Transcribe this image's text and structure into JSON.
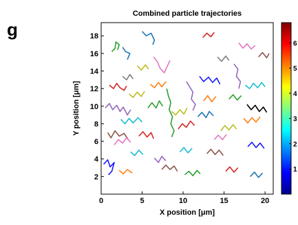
{
  "panel_label": "g",
  "chart_data": {
    "type": "line",
    "title": "Combined particle trajectories",
    "xlabel": "X position [μm]",
    "ylabel": "Y position [μm]",
    "xlim": [
      0,
      21
    ],
    "ylim": [
      0,
      19.5
    ],
    "x_ticks": [
      0,
      5,
      10,
      15,
      20
    ],
    "y_ticks": [
      2,
      4,
      6,
      8,
      10,
      12,
      14,
      16,
      18
    ],
    "grid": false,
    "colorbar": {
      "range": [
        0,
        6.8
      ],
      "ticks": [
        1,
        2,
        3,
        4,
        5,
        6
      ],
      "colormap": "jet",
      "placement": "right"
    },
    "series": [
      {
        "color": "#d62728",
        "points": [
          [
            1.0,
            12.4
          ],
          [
            1.5,
            12.0
          ],
          [
            1.9,
            12.6
          ],
          [
            2.3,
            12.1
          ],
          [
            2.8,
            11.8
          ],
          [
            3.1,
            12.3
          ]
        ]
      },
      {
        "color": "#2ca02c",
        "points": [
          [
            1.3,
            16.2
          ],
          [
            1.7,
            16.6
          ],
          [
            1.8,
            17.3
          ],
          [
            2.2,
            17.0
          ],
          [
            2.0,
            16.4
          ]
        ]
      },
      {
        "color": "#1f77b4",
        "points": [
          [
            2.6,
            16.7
          ],
          [
            3.0,
            16.2
          ],
          [
            3.5,
            16.0
          ],
          [
            3.2,
            15.3
          ]
        ]
      },
      {
        "color": "#9467bd",
        "points": [
          [
            0.5,
            9.8
          ],
          [
            1.0,
            10.3
          ],
          [
            1.4,
            9.6
          ],
          [
            1.9,
            10.1
          ],
          [
            2.3,
            9.4
          ],
          [
            2.7,
            9.9
          ],
          [
            3.2,
            9.0
          ],
          [
            3.6,
            9.6
          ]
        ]
      },
      {
        "color": "#17becf",
        "points": [
          [
            2.4,
            8.5
          ],
          [
            2.9,
            8.0
          ],
          [
            3.4,
            8.6
          ],
          [
            3.9,
            8.1
          ],
          [
            4.5,
            8.7
          ],
          [
            5.0,
            8.2
          ]
        ]
      },
      {
        "color": "#8c564b",
        "points": [
          [
            0.8,
            7.0
          ],
          [
            1.2,
            6.4
          ],
          [
            1.7,
            7.2
          ],
          [
            2.2,
            6.6
          ],
          [
            2.8,
            6.9
          ],
          [
            3.3,
            6.2
          ]
        ]
      },
      {
        "color": "#e377c2",
        "points": [
          [
            1.6,
            5.6
          ],
          [
            2.1,
            6.2
          ],
          [
            2.6,
            5.8
          ],
          [
            3.1,
            6.4
          ],
          [
            3.6,
            5.9
          ]
        ]
      },
      {
        "color": "#1a1aff",
        "points": [
          [
            0.3,
            3.4
          ],
          [
            0.8,
            3.9
          ],
          [
            1.1,
            3.1
          ],
          [
            1.6,
            3.6
          ],
          [
            1.3,
            2.6
          ],
          [
            0.9,
            2.2
          ]
        ]
      },
      {
        "color": "#ff7f0e",
        "points": [
          [
            2.2,
            2.7
          ],
          [
            2.7,
            2.3
          ],
          [
            3.2,
            2.8
          ],
          [
            3.8,
            2.4
          ]
        ]
      },
      {
        "color": "#7f7f7f",
        "points": [
          [
            2.6,
            13.4
          ],
          [
            3.1,
            13.0
          ],
          [
            3.5,
            13.6
          ],
          [
            3.9,
            13.1
          ]
        ]
      },
      {
        "color": "#bcbd22",
        "points": [
          [
            3.4,
            11.4
          ],
          [
            3.9,
            11.0
          ],
          [
            4.4,
            11.6
          ],
          [
            4.9,
            11.1
          ],
          [
            5.3,
            11.7
          ]
        ]
      },
      {
        "color": "#1f77b4",
        "points": [
          [
            5.0,
            18.5
          ],
          [
            5.5,
            18.0
          ],
          [
            6.1,
            18.3
          ],
          [
            6.5,
            17.5
          ],
          [
            6.3,
            17.0
          ]
        ]
      },
      {
        "color": "#d62728",
        "points": [
          [
            4.6,
            6.6
          ],
          [
            5.1,
            7.1
          ],
          [
            5.6,
            6.5
          ],
          [
            6.1,
            7.0
          ],
          [
            6.4,
            6.3
          ]
        ]
      },
      {
        "color": "#2ca02c",
        "points": [
          [
            5.7,
            9.8
          ],
          [
            6.2,
            10.4
          ],
          [
            6.7,
            9.8
          ],
          [
            7.1,
            10.6
          ],
          [
            7.5,
            10.0
          ]
        ]
      },
      {
        "color": "#ff7f0e",
        "points": [
          [
            6.0,
            12.5
          ],
          [
            6.5,
            12.1
          ],
          [
            7.0,
            12.7
          ],
          [
            7.4,
            12.2
          ],
          [
            7.9,
            12.8
          ]
        ]
      },
      {
        "color": "#9467bd",
        "points": [
          [
            6.5,
            4.1
          ],
          [
            7.0,
            3.6
          ],
          [
            7.4,
            4.3
          ],
          [
            7.9,
            3.8
          ]
        ]
      },
      {
        "color": "#8c564b",
        "points": [
          [
            7.4,
            2.8
          ],
          [
            7.9,
            3.3
          ],
          [
            8.4,
            2.8
          ],
          [
            8.9,
            3.2
          ],
          [
            9.3,
            2.6
          ]
        ]
      },
      {
        "color": "#2ca02c",
        "points": [
          [
            8.0,
            12.0
          ],
          [
            8.2,
            11.2
          ],
          [
            8.5,
            10.4
          ],
          [
            8.3,
            9.6
          ],
          [
            8.7,
            8.8
          ],
          [
            8.5,
            8.0
          ],
          [
            8.9,
            7.2
          ],
          [
            8.6,
            6.5
          ]
        ]
      },
      {
        "color": "#e377c2",
        "points": [
          [
            6.4,
            15.6
          ],
          [
            6.9,
            15.0
          ],
          [
            7.2,
            14.3
          ],
          [
            7.7,
            13.8
          ],
          [
            8.1,
            14.6
          ],
          [
            8.4,
            15.2
          ]
        ]
      },
      {
        "color": "#bcbd22",
        "points": [
          [
            8.6,
            9.4
          ],
          [
            9.1,
            9.0
          ],
          [
            9.6,
            9.6
          ],
          [
            10.1,
            9.1
          ],
          [
            10.5,
            9.8
          ]
        ]
      },
      {
        "color": "#d62728",
        "points": [
          [
            9.4,
            7.4
          ],
          [
            9.9,
            8.0
          ],
          [
            10.4,
            7.6
          ],
          [
            10.9,
            8.3
          ],
          [
            11.4,
            7.8
          ]
        ]
      },
      {
        "color": "#9467bd",
        "points": [
          [
            10.4,
            12.8
          ],
          [
            10.8,
            12.2
          ],
          [
            11.2,
            11.6
          ],
          [
            11.0,
            10.8
          ],
          [
            11.5,
            10.2
          ],
          [
            11.2,
            9.5
          ]
        ]
      },
      {
        "color": "#17becf",
        "points": [
          [
            9.6,
            4.8
          ],
          [
            10.1,
            5.3
          ],
          [
            10.6,
            4.7
          ],
          [
            11.1,
            5.2
          ]
        ]
      },
      {
        "color": "#2ca02c",
        "points": [
          [
            10.2,
            2.2
          ],
          [
            10.7,
            2.6
          ],
          [
            11.2,
            2.1
          ],
          [
            11.7,
            2.7
          ],
          [
            12.1,
            2.3
          ]
        ]
      },
      {
        "color": "#1f77b4",
        "points": [
          [
            11.8,
            8.8
          ],
          [
            12.3,
            9.3
          ],
          [
            12.8,
            8.7
          ],
          [
            13.2,
            9.4
          ],
          [
            13.7,
            8.9
          ]
        ]
      },
      {
        "color": "#d62728",
        "points": [
          [
            12.4,
            17.8
          ],
          [
            12.9,
            18.3
          ],
          [
            13.4,
            17.9
          ],
          [
            13.8,
            18.4
          ]
        ]
      },
      {
        "color": "#1a1aff",
        "points": [
          [
            12.0,
            13.4
          ],
          [
            12.5,
            12.8
          ],
          [
            13.1,
            13.3
          ],
          [
            13.6,
            12.7
          ],
          [
            14.1,
            13.2
          ],
          [
            14.5,
            12.5
          ]
        ]
      },
      {
        "color": "#ff7f0e",
        "points": [
          [
            12.5,
            10.6
          ],
          [
            13.0,
            11.2
          ],
          [
            13.5,
            10.5
          ],
          [
            14.0,
            11.1
          ]
        ]
      },
      {
        "color": "#7f7f7f",
        "points": [
          [
            14.2,
            15.6
          ],
          [
            14.7,
            15.1
          ],
          [
            15.2,
            15.7
          ],
          [
            15.6,
            15.2
          ]
        ]
      },
      {
        "color": "#8c564b",
        "points": [
          [
            12.9,
            4.6
          ],
          [
            13.4,
            5.1
          ],
          [
            13.9,
            4.5
          ],
          [
            14.4,
            5.0
          ],
          [
            14.9,
            4.4
          ]
        ]
      },
      {
        "color": "#bcbd22",
        "points": [
          [
            14.6,
            7.2
          ],
          [
            15.1,
            7.8
          ],
          [
            15.6,
            7.3
          ],
          [
            16.1,
            7.9
          ],
          [
            16.5,
            7.4
          ]
        ]
      },
      {
        "color": "#9467bd",
        "points": [
          [
            16.2,
            14.8
          ],
          [
            16.7,
            14.2
          ],
          [
            16.5,
            13.4
          ],
          [
            17.0,
            12.8
          ],
          [
            16.8,
            12.0
          ]
        ]
      },
      {
        "color": "#e377c2",
        "points": [
          [
            16.8,
            17.2
          ],
          [
            17.3,
            16.6
          ],
          [
            17.8,
            17.1
          ],
          [
            18.3,
            16.5
          ],
          [
            18.8,
            16.9
          ]
        ]
      },
      {
        "color": "#17becf",
        "points": [
          [
            17.6,
            12.4
          ],
          [
            18.1,
            12.0
          ],
          [
            18.6,
            12.6
          ],
          [
            19.1,
            12.1
          ],
          [
            19.6,
            12.7
          ],
          [
            20.0,
            12.2
          ]
        ]
      },
      {
        "color": "#000000",
        "points": [
          [
            17.8,
            10.2
          ],
          [
            18.3,
            9.6
          ],
          [
            18.8,
            10.1
          ],
          [
            19.3,
            9.4
          ],
          [
            19.8,
            9.9
          ],
          [
            20.2,
            9.3
          ]
        ]
      },
      {
        "color": "#ff7f0e",
        "points": [
          [
            17.4,
            8.6
          ],
          [
            17.9,
            8.1
          ],
          [
            18.4,
            8.7
          ],
          [
            18.9,
            8.2
          ],
          [
            19.4,
            8.8
          ]
        ]
      },
      {
        "color": "#2ca02c",
        "points": [
          [
            15.6,
            10.8
          ],
          [
            16.1,
            11.3
          ],
          [
            16.6,
            10.7
          ],
          [
            17.1,
            11.2
          ]
        ]
      },
      {
        "color": "#1a1aff",
        "points": [
          [
            17.9,
            5.4
          ],
          [
            18.4,
            5.9
          ],
          [
            18.9,
            5.3
          ],
          [
            19.4,
            5.8
          ],
          [
            19.9,
            5.2
          ]
        ]
      },
      {
        "color": "#d62728",
        "points": [
          [
            15.2,
            2.6
          ],
          [
            15.7,
            3.1
          ],
          [
            16.2,
            2.5
          ],
          [
            16.7,
            3.0
          ]
        ]
      },
      {
        "color": "#1f77b4",
        "points": [
          [
            18.2,
            2.0
          ],
          [
            18.7,
            2.5
          ],
          [
            19.2,
            1.9
          ],
          [
            19.7,
            2.4
          ]
        ]
      },
      {
        "color": "#8c564b",
        "points": [
          [
            19.2,
            15.6
          ],
          [
            19.7,
            16.1
          ],
          [
            20.2,
            15.5
          ],
          [
            20.5,
            16.0
          ]
        ]
      },
      {
        "color": "#bcbd22",
        "points": [
          [
            4.4,
            14.6
          ],
          [
            4.9,
            14.1
          ],
          [
            5.4,
            14.7
          ],
          [
            5.8,
            14.2
          ]
        ]
      },
      {
        "color": "#17becf",
        "points": [
          [
            3.6,
            4.8
          ],
          [
            4.1,
            4.4
          ],
          [
            4.6,
            5.0
          ],
          [
            5.1,
            4.5
          ]
        ]
      },
      {
        "color": "#e377c2",
        "points": [
          [
            13.8,
            6.2
          ],
          [
            14.3,
            6.7
          ],
          [
            14.8,
            6.2
          ],
          [
            15.3,
            6.8
          ]
        ]
      }
    ]
  }
}
